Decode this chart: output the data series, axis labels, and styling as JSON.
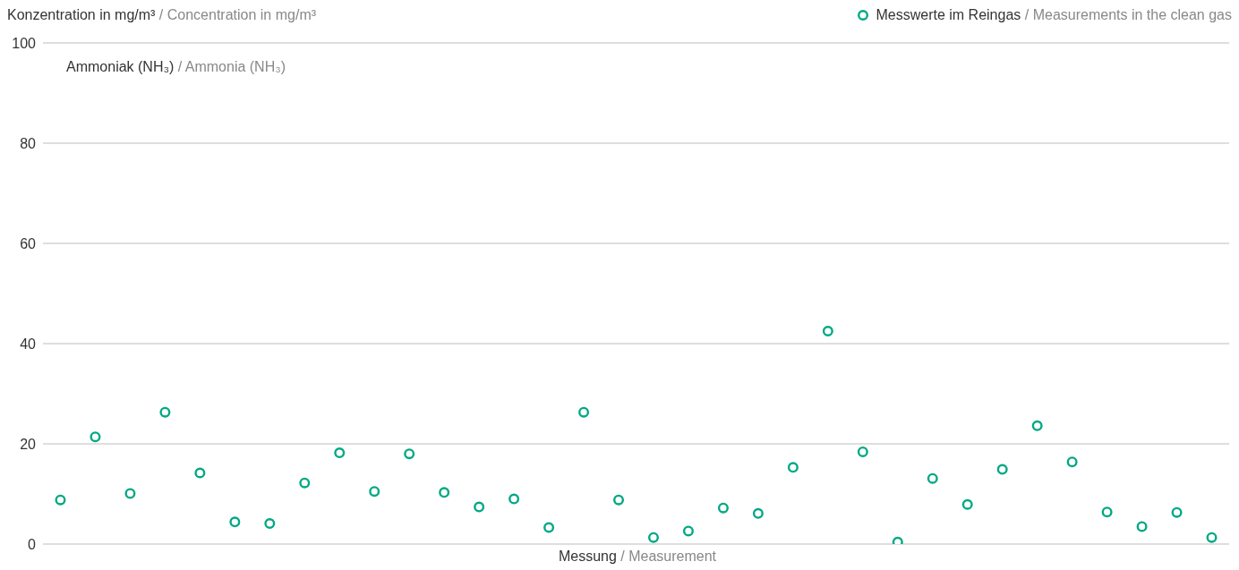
{
  "chart_data": {
    "type": "scatter",
    "title": "Konzentration in mg/m³ / Concentration in mg/m³",
    "xlabel": "Messung / Measurement",
    "annotations": [
      "Ammoniak (NH₃) / Ammonia (NH₃)"
    ],
    "categories": [
      null,
      null,
      null,
      null,
      null,
      null,
      null,
      null,
      null,
      null,
      null,
      null,
      null,
      null,
      null,
      null,
      null,
      null,
      null,
      null,
      null,
      null,
      null,
      null,
      null,
      null,
      null,
      null,
      null,
      null,
      null,
      null,
      null,
      null
    ],
    "series": [
      {
        "name": "Messwerte im Reingas / Measurements in the clean gas",
        "color": "#00a884",
        "values": [
          8.8,
          21.4,
          10.1,
          26.3,
          14.2,
          4.4,
          4.1,
          12.2,
          18.2,
          10.5,
          18.0,
          10.3,
          7.4,
          9.0,
          3.3,
          26.3,
          8.8,
          1.3,
          2.6,
          7.2,
          6.1,
          15.3,
          42.5,
          18.4,
          0.4,
          13.1,
          7.9,
          14.9,
          23.6,
          16.4,
          6.4,
          3.5,
          6.3,
          1.3
        ]
      }
    ],
    "ylim": [
      0,
      100
    ],
    "yticks": [
      0,
      20,
      40,
      60,
      80,
      100
    ],
    "grid": "y",
    "legend": "top right",
    "marker": "circle"
  }
}
